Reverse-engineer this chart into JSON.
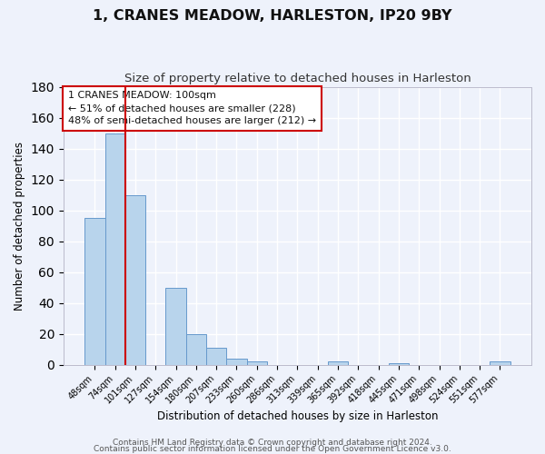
{
  "title": "1, CRANES MEADOW, HARLESTON, IP20 9BY",
  "subtitle": "Size of property relative to detached houses in Harleston",
  "xlabel": "Distribution of detached houses by size in Harleston",
  "ylabel": "Number of detached properties",
  "bar_labels": [
    "48sqm",
    "74sqm",
    "101sqm",
    "127sqm",
    "154sqm",
    "180sqm",
    "207sqm",
    "233sqm",
    "260sqm",
    "286sqm",
    "313sqm",
    "339sqm",
    "365sqm",
    "392sqm",
    "418sqm",
    "445sqm",
    "471sqm",
    "498sqm",
    "524sqm",
    "551sqm",
    "577sqm"
  ],
  "bar_values": [
    95,
    150,
    110,
    0,
    50,
    20,
    11,
    4,
    2,
    0,
    0,
    0,
    2,
    0,
    0,
    1,
    0,
    0,
    0,
    0,
    2
  ],
  "bar_color": "#b8d4ec",
  "bar_edge_color": "#6699cc",
  "reference_line_index": 1.5,
  "reference_line_color": "#cc0000",
  "annotation_title": "1 CRANES MEADOW: 100sqm",
  "annotation_line1": "← 51% of detached houses are smaller (228)",
  "annotation_line2": "48% of semi-detached houses are larger (212) →",
  "annotation_box_facecolor": "#ffffff",
  "annotation_box_edgecolor": "#cc0000",
  "ylim": [
    0,
    180
  ],
  "yticks": [
    0,
    20,
    40,
    60,
    80,
    100,
    120,
    140,
    160,
    180
  ],
  "footer_line1": "Contains HM Land Registry data © Crown copyright and database right 2024.",
  "footer_line2": "Contains public sector information licensed under the Open Government Licence v3.0.",
  "bg_color": "#eef2fb",
  "grid_color": "#ffffff",
  "title_fontsize": 11.5,
  "subtitle_fontsize": 9.5,
  "axis_label_fontsize": 8.5,
  "tick_fontsize": 7,
  "annotation_fontsize": 8,
  "footer_fontsize": 6.5
}
